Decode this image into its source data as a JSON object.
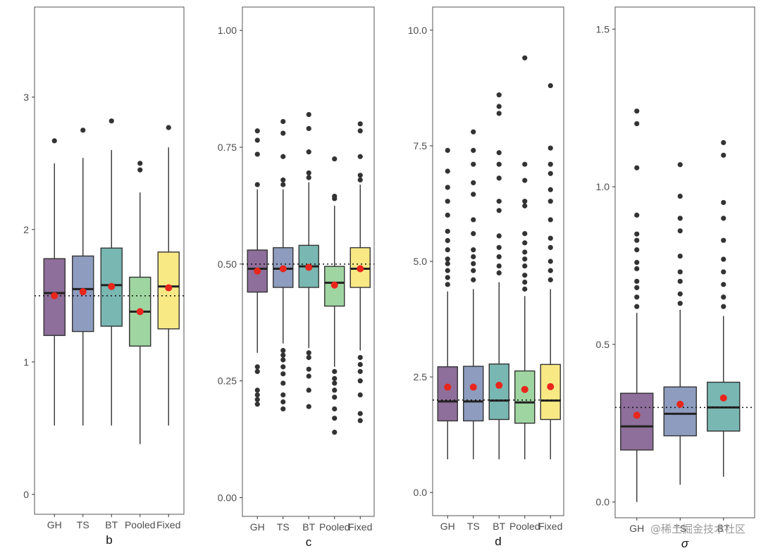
{
  "watermark": "@稀土掘金技术社区",
  "colors": {
    "GH": "#8e6e9a",
    "TS": "#8d9cbf",
    "BT": "#79b7b2",
    "Pooled": "#9fd5a1",
    "Fixed": "#f9e985",
    "mean_point": "#e8261c",
    "outlier": "#333333",
    "frame": "#555555",
    "text": "#4d4d4d"
  },
  "chart_data": [
    {
      "type": "boxplot",
      "xlabel": "b",
      "ylim": [
        -0.15,
        3.68
      ],
      "yticks": [
        0,
        1,
        2,
        3
      ],
      "ytick_labels": [
        "0",
        "1",
        "2",
        "3"
      ],
      "reference_line": 1.5,
      "categories": [
        "GH",
        "TS",
        "BT",
        "Pooled",
        "Fixed"
      ],
      "boxes": [
        {
          "name": "GH",
          "q1": 1.2,
          "median": 1.52,
          "q3": 1.78,
          "whisker_low": 0.52,
          "whisker_high": 2.5,
          "mean": 1.5,
          "outliers": [
            2.67
          ]
        },
        {
          "name": "TS",
          "q1": 1.23,
          "median": 1.55,
          "q3": 1.8,
          "whisker_low": 0.52,
          "whisker_high": 2.54,
          "mean": 1.53,
          "outliers": [
            2.75
          ]
        },
        {
          "name": "BT",
          "q1": 1.27,
          "median": 1.58,
          "q3": 1.86,
          "whisker_low": 0.52,
          "whisker_high": 2.6,
          "mean": 1.57,
          "outliers": [
            2.82
          ]
        },
        {
          "name": "Pooled",
          "q1": 1.12,
          "median": 1.38,
          "q3": 1.64,
          "whisker_low": 0.38,
          "whisker_high": 2.28,
          "mean": 1.38,
          "outliers": [
            2.45,
            2.5
          ]
        },
        {
          "name": "Fixed",
          "q1": 1.25,
          "median": 1.57,
          "q3": 1.83,
          "whisker_low": 0.52,
          "whisker_high": 2.62,
          "mean": 1.56,
          "outliers": [
            2.77
          ]
        }
      ]
    },
    {
      "type": "boxplot",
      "xlabel": "c",
      "ylim": [
        -0.04,
        1.05
      ],
      "yticks": [
        0,
        0.25,
        0.5,
        0.75,
        1.0
      ],
      "ytick_labels": [
        "0.00",
        "0.25",
        "0.50",
        "0.75",
        "1.00"
      ],
      "reference_line": 0.5,
      "categories": [
        "GH",
        "TS",
        "BT",
        "Pooled",
        "Fixed"
      ],
      "boxes": [
        {
          "name": "GH",
          "q1": 0.44,
          "median": 0.49,
          "q3": 0.53,
          "whisker_low": 0.31,
          "whisker_high": 0.66,
          "mean": 0.485,
          "outliers": [
            0.2,
            0.21,
            0.22,
            0.23,
            0.27,
            0.28,
            0.67,
            0.735,
            0.765,
            0.785
          ]
        },
        {
          "name": "TS",
          "q1": 0.45,
          "median": 0.49,
          "q3": 0.535,
          "whisker_low": 0.33,
          "whisker_high": 0.66,
          "mean": 0.49,
          "outliers": [
            0.19,
            0.205,
            0.22,
            0.245,
            0.265,
            0.28,
            0.295,
            0.305,
            0.315,
            0.67,
            0.68,
            0.73,
            0.78,
            0.805
          ]
        },
        {
          "name": "BT",
          "q1": 0.45,
          "median": 0.495,
          "q3": 0.54,
          "whisker_low": 0.32,
          "whisker_high": 0.675,
          "mean": 0.493,
          "outliers": [
            0.195,
            0.23,
            0.26,
            0.275,
            0.3,
            0.31,
            0.685,
            0.695,
            0.74,
            0.79,
            0.82
          ]
        },
        {
          "name": "Pooled",
          "q1": 0.41,
          "median": 0.46,
          "q3": 0.495,
          "whisker_low": 0.28,
          "whisker_high": 0.625,
          "mean": 0.455,
          "outliers": [
            0.14,
            0.17,
            0.19,
            0.215,
            0.23,
            0.245,
            0.255,
            0.27,
            0.64,
            0.645,
            0.725
          ]
        },
        {
          "name": "Fixed",
          "q1": 0.45,
          "median": 0.49,
          "q3": 0.535,
          "whisker_low": 0.315,
          "whisker_high": 0.67,
          "mean": 0.49,
          "outliers": [
            0.165,
            0.18,
            0.22,
            0.25,
            0.27,
            0.285,
            0.3,
            0.68,
            0.69,
            0.73,
            0.785,
            0.8
          ]
        }
      ]
    },
    {
      "type": "boxplot",
      "xlabel": "d",
      "ylim": [
        -0.5,
        10.5
      ],
      "yticks": [
        0,
        2.5,
        5,
        7.5,
        10
      ],
      "ytick_labels": [
        "0.0",
        "2.5",
        "5.0",
        "7.5",
        "10.0"
      ],
      "reference_line": 2.0,
      "categories": [
        "GH",
        "TS",
        "BT",
        "Pooled",
        "Fixed"
      ],
      "boxes": [
        {
          "name": "GH",
          "q1": 1.55,
          "median": 1.97,
          "q3": 2.72,
          "whisker_low": 0.72,
          "whisker_high": 4.35,
          "mean": 2.28,
          "outliers": [
            4.5,
            4.65,
            4.8,
            4.95,
            5.05,
            5.25,
            5.45,
            5.65,
            6.0,
            6.3,
            6.6,
            6.95,
            7.4
          ]
        },
        {
          "name": "TS",
          "q1": 1.55,
          "median": 1.97,
          "q3": 2.73,
          "whisker_low": 0.72,
          "whisker_high": 4.4,
          "mean": 2.28,
          "outliers": [
            4.6,
            4.8,
            4.95,
            5.1,
            5.25,
            5.6,
            5.9,
            6.45,
            6.7,
            7.1,
            7.4,
            7.8
          ]
        },
        {
          "name": "BT",
          "q1": 1.58,
          "median": 1.99,
          "q3": 2.78,
          "whisker_low": 0.72,
          "whisker_high": 4.55,
          "mean": 2.32,
          "outliers": [
            4.75,
            4.9,
            5.1,
            5.3,
            5.55,
            6.1,
            6.3,
            6.8,
            7.1,
            7.35,
            8.2,
            8.35,
            8.6
          ]
        },
        {
          "name": "Pooled",
          "q1": 1.5,
          "median": 1.95,
          "q3": 2.63,
          "whisker_low": 0.72,
          "whisker_high": 4.25,
          "mean": 2.23,
          "outliers": [
            4.4,
            4.55,
            4.7,
            4.9,
            5.05,
            5.2,
            5.4,
            5.6,
            6.2,
            6.3,
            6.75,
            7.1,
            9.4
          ]
        },
        {
          "name": "Fixed",
          "q1": 1.58,
          "median": 1.99,
          "q3": 2.77,
          "whisker_low": 0.72,
          "whisker_high": 4.4,
          "mean": 2.29,
          "outliers": [
            4.6,
            4.8,
            5.0,
            5.3,
            5.5,
            5.9,
            6.3,
            6.55,
            6.9,
            7.1,
            7.45,
            8.8
          ]
        }
      ]
    },
    {
      "type": "boxplot",
      "xlabel": "σ",
      "ylim": [
        -0.05,
        1.57
      ],
      "yticks": [
        0,
        0.5,
        1.0,
        1.5
      ],
      "ytick_labels": [
        "0.0",
        "0.5",
        "1.0",
        "1.5"
      ],
      "reference_line": 0.3,
      "categories": [
        "GH",
        "TS",
        "BT"
      ],
      "boxes": [
        {
          "name": "GH",
          "q1": 0.165,
          "median": 0.24,
          "q3": 0.345,
          "whisker_low": 0.0,
          "whisker_high": 0.6,
          "mean": 0.275,
          "outliers": [
            0.62,
            0.65,
            0.68,
            0.7,
            0.74,
            0.76,
            0.8,
            0.83,
            0.85,
            0.91,
            1.06,
            1.2,
            1.24
          ]
        },
        {
          "name": "TS",
          "q1": 0.21,
          "median": 0.28,
          "q3": 0.365,
          "whisker_low": 0.055,
          "whisker_high": 0.61,
          "mean": 0.31,
          "outliers": [
            0.63,
            0.66,
            0.7,
            0.73,
            0.78,
            0.86,
            0.9,
            0.97,
            1.07
          ]
        },
        {
          "name": "BT",
          "q1": 0.225,
          "median": 0.3,
          "q3": 0.38,
          "whisker_low": 0.08,
          "whisker_high": 0.59,
          "mean": 0.33,
          "outliers": [
            0.62,
            0.65,
            0.69,
            0.73,
            0.77,
            0.83,
            0.9,
            0.95,
            1.1,
            1.14
          ]
        }
      ]
    }
  ]
}
